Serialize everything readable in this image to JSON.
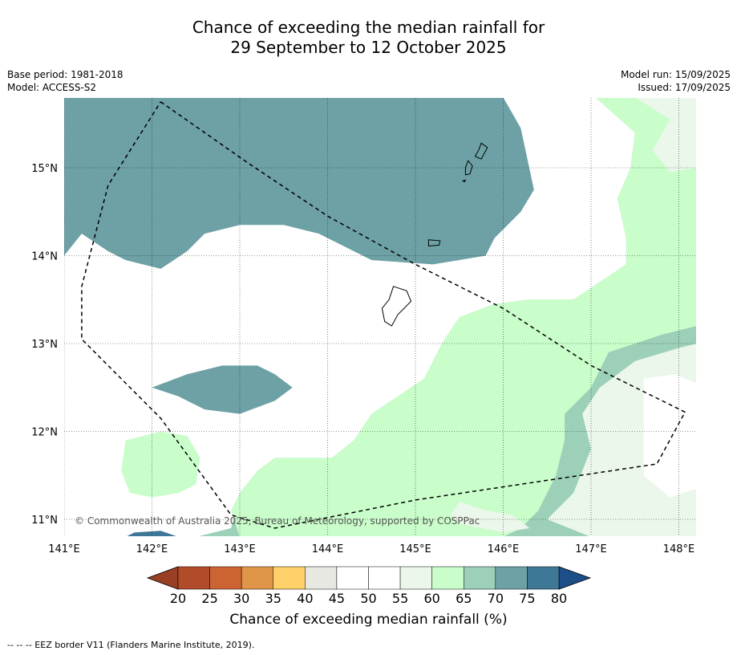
{
  "header": {
    "title_line1": "Chance of exceeding the median rainfall for",
    "title_line2": "29 September to 12 October 2025",
    "base_period": "Base period: 1981-2018",
    "model": "Model: ACCESS-S2",
    "model_run": "Model run: 15/09/2025",
    "issued": "Issued: 17/09/2025"
  },
  "map": {
    "lon_range": [
      141.0,
      148.2
    ],
    "lat_range": [
      10.8,
      15.8
    ],
    "lon_ticks": [
      {
        "value": 141,
        "label": "141°E"
      },
      {
        "value": 142,
        "label": "142°E"
      },
      {
        "value": 143,
        "label": "143°E"
      },
      {
        "value": 144,
        "label": "144°E"
      },
      {
        "value": 145,
        "label": "145°E"
      },
      {
        "value": 146,
        "label": "146°E"
      },
      {
        "value": 147,
        "label": "147°E"
      },
      {
        "value": 148,
        "label": "148°E"
      }
    ],
    "lat_ticks": [
      {
        "value": 15,
        "label": "15°N"
      },
      {
        "value": 14,
        "label": "14°N"
      },
      {
        "value": 13,
        "label": "13°N"
      },
      {
        "value": 12,
        "label": "12°N"
      },
      {
        "value": 11,
        "label": "11°N"
      }
    ],
    "gridlines": true,
    "copyright": "© Commonwealth of Australia 2025, Bureau of Meteorology, supported by COSPPac",
    "eez_border": [
      [
        142.1,
        15.75
      ],
      [
        143.1,
        15.05
      ],
      [
        144.0,
        14.45
      ],
      [
        145.0,
        13.9
      ],
      [
        146.0,
        13.4
      ],
      [
        147.0,
        12.75
      ],
      [
        148.07,
        12.22
      ],
      [
        147.75,
        11.63
      ],
      [
        145.0,
        11.22
      ],
      [
        143.4,
        10.9
      ],
      [
        142.9,
        11.05
      ],
      [
        142.1,
        12.15
      ],
      [
        141.2,
        13.05
      ],
      [
        141.2,
        13.65
      ],
      [
        141.5,
        14.8
      ],
      [
        142.1,
        15.75
      ]
    ],
    "contour_fields": [
      {
        "level": "75-80",
        "color": "#3f7797",
        "polygons": [
          [
            [
              141.0,
              15.8
            ],
            [
              142.0,
              15.8
            ],
            [
              141.7,
              15.2
            ],
            [
              141.0,
              15.0
            ]
          ],
          [
            [
              144.5,
              15.6
            ],
            [
              144.8,
              15.65
            ],
            [
              145.2,
              15.6
            ],
            [
              145.55,
              15.4
            ],
            [
              145.4,
              15.2
            ],
            [
              145.0,
              15.05
            ],
            [
              144.7,
              14.85
            ],
            [
              144.55,
              14.7
            ],
            [
              144.4,
              14.75
            ],
            [
              144.45,
              15.3
            ]
          ],
          [
            [
              141.7,
              10.8
            ],
            [
              142.3,
              10.8
            ],
            [
              142.1,
              10.87
            ],
            [
              141.8,
              10.85
            ]
          ]
        ]
      },
      {
        "level": "70-75",
        "color": "#6da1a5",
        "polygons": [
          [
            [
              141.0,
              15.8
            ],
            [
              146.0,
              15.8
            ],
            [
              146.2,
              15.45
            ],
            [
              146.35,
              14.75
            ],
            [
              146.2,
              14.5
            ],
            [
              145.9,
              14.2
            ],
            [
              145.8,
              14.0
            ],
            [
              145.2,
              13.9
            ],
            [
              144.5,
              13.95
            ],
            [
              143.9,
              14.25
            ],
            [
              143.5,
              14.35
            ],
            [
              143.0,
              14.35
            ],
            [
              142.6,
              14.25
            ],
            [
              142.4,
              14.05
            ],
            [
              142.1,
              13.85
            ],
            [
              141.7,
              13.95
            ],
            [
              141.5,
              14.05
            ],
            [
              141.2,
              14.25
            ],
            [
              141.0,
              14.0
            ]
          ],
          [
            [
              142.0,
              12.5
            ],
            [
              142.4,
              12.65
            ],
            [
              142.8,
              12.75
            ],
            [
              143.2,
              12.75
            ],
            [
              143.4,
              12.65
            ],
            [
              143.6,
              12.5
            ],
            [
              143.4,
              12.35
            ],
            [
              143.0,
              12.2
            ],
            [
              142.6,
              12.25
            ],
            [
              142.3,
              12.4
            ]
          ]
        ]
      },
      {
        "level": "65-70",
        "color": "#9dd0b8",
        "polygons": [
          [
            [
              141.0,
              10.8
            ],
            [
              148.2,
              10.8
            ],
            [
              148.2,
              15.8
            ],
            [
              147.05,
              15.8
            ],
            [
              147.5,
              15.4
            ],
            [
              147.45,
              15.0
            ],
            [
              147.3,
              14.65
            ],
            [
              147.4,
              14.2
            ],
            [
              147.4,
              13.9
            ],
            [
              147.1,
              13.7
            ],
            [
              146.8,
              13.5
            ],
            [
              146.3,
              13.5
            ],
            [
              145.9,
              13.45
            ],
            [
              145.5,
              13.3
            ],
            [
              145.3,
              13.0
            ],
            [
              145.1,
              12.6
            ],
            [
              144.8,
              12.4
            ],
            [
              144.5,
              12.2
            ],
            [
              144.3,
              11.9
            ],
            [
              144.05,
              11.7
            ],
            [
              143.4,
              11.7
            ],
            [
              143.2,
              11.55
            ],
            [
              143.0,
              11.3
            ],
            [
              142.9,
              10.9
            ],
            [
              142.5,
              10.8
            ]
          ]
        ]
      },
      {
        "level": "60-65",
        "color": "#c9fdca",
        "polygons": [
          [
            [
              142.0,
              15.8
            ],
            [
              148.2,
              15.8
            ],
            [
              148.2,
              13.2
            ],
            [
              147.8,
              13.1
            ],
            [
              147.2,
              12.9
            ],
            [
              147.0,
              12.5
            ],
            [
              146.7,
              12.2
            ],
            [
              146.7,
              11.9
            ],
            [
              146.6,
              11.5
            ],
            [
              146.4,
              11.1
            ],
            [
              146.2,
              10.9
            ],
            [
              146.0,
              10.8
            ],
            [
              143.0,
              10.8
            ],
            [
              142.9,
              11.1
            ],
            [
              143.0,
              11.3
            ],
            [
              143.2,
              11.55
            ],
            [
              143.4,
              11.7
            ],
            [
              144.05,
              11.7
            ],
            [
              144.3,
              11.9
            ],
            [
              144.5,
              12.2
            ],
            [
              144.8,
              12.4
            ],
            [
              145.1,
              12.6
            ],
            [
              145.3,
              13.0
            ],
            [
              145.5,
              13.3
            ],
            [
              145.9,
              13.45
            ],
            [
              146.3,
              13.5
            ],
            [
              146.8,
              13.5
            ],
            [
              147.1,
              13.7
            ],
            [
              147.4,
              13.9
            ],
            [
              147.4,
              14.2
            ],
            [
              147.3,
              14.65
            ],
            [
              147.45,
              15.0
            ],
            [
              147.5,
              15.4
            ],
            [
              147.05,
              15.8
            ]
          ],
          [
            [
              141.7,
              11.9
            ],
            [
              142.1,
              12.0
            ],
            [
              142.4,
              11.95
            ],
            [
              142.55,
              11.7
            ],
            [
              142.5,
              11.4
            ],
            [
              142.3,
              11.3
            ],
            [
              142.0,
              11.25
            ],
            [
              141.75,
              11.3
            ],
            [
              141.65,
              11.55
            ]
          ]
        ]
      },
      {
        "level": "55-60",
        "color": "#ebf7eb",
        "polygons": [
          [
            [
              147.5,
              15.8
            ],
            [
              148.2,
              15.8
            ],
            [
              148.2,
              15.0
            ],
            [
              147.9,
              14.95
            ],
            [
              147.7,
              15.2
            ],
            [
              147.9,
              15.55
            ]
          ],
          [
            [
              147.1,
              12.5
            ],
            [
              147.5,
              12.8
            ],
            [
              148.0,
              12.95
            ],
            [
              148.2,
              13.0
            ],
            [
              148.2,
              10.8
            ],
            [
              147.0,
              10.8
            ],
            [
              146.5,
              11.0
            ],
            [
              146.8,
              11.3
            ],
            [
              147.0,
              11.8
            ],
            [
              146.9,
              12.2
            ]
          ],
          [
            [
              145.5,
              11.2
            ],
            [
              145.4,
              11.05
            ],
            [
              145.5,
              10.95
            ],
            [
              146.0,
              10.85
            ],
            [
              146.3,
              10.9
            ],
            [
              146.1,
              11.05
            ],
            [
              145.8,
              11.1
            ]
          ]
        ]
      },
      {
        "level": "50-55",
        "color": "#ffffff",
        "polygons": [
          [
            [
              147.6,
              12.6
            ],
            [
              147.95,
              12.65
            ],
            [
              148.2,
              12.55
            ],
            [
              148.2,
              11.35
            ],
            [
              147.9,
              11.25
            ],
            [
              147.6,
              11.5
            ],
            [
              147.6,
              12.0
            ]
          ]
        ]
      }
    ],
    "land": [
      {
        "name": "Guam",
        "outline": [
          [
            144.75,
            13.65
          ],
          [
            144.9,
            13.6
          ],
          [
            144.95,
            13.48
          ],
          [
            144.8,
            13.33
          ],
          [
            144.73,
            13.2
          ],
          [
            144.65,
            13.25
          ],
          [
            144.62,
            13.4
          ],
          [
            144.7,
            13.5
          ]
        ]
      },
      {
        "name": "Rota",
        "outline": [
          [
            145.15,
            14.18
          ],
          [
            145.28,
            14.17
          ],
          [
            145.27,
            14.12
          ],
          [
            145.15,
            14.11
          ]
        ]
      },
      {
        "name": "Tinian",
        "outline": [
          [
            145.6,
            15.08
          ],
          [
            145.65,
            15.02
          ],
          [
            145.62,
            14.93
          ],
          [
            145.57,
            14.92
          ],
          [
            145.57,
            15.0
          ]
        ]
      },
      {
        "name": "Saipan",
        "outline": [
          [
            145.75,
            15.28
          ],
          [
            145.82,
            15.23
          ],
          [
            145.75,
            15.1
          ],
          [
            145.68,
            15.13
          ],
          [
            145.72,
            15.2
          ]
        ]
      },
      {
        "name": "Aguijan",
        "outline": [
          [
            145.54,
            14.85
          ],
          [
            145.57,
            14.86
          ],
          [
            145.56,
            14.84
          ]
        ]
      }
    ]
  },
  "colorbar": {
    "title": "Chance of exceeding median rainfall (%)",
    "tick_labels": [
      "20",
      "25",
      "30",
      "35",
      "40",
      "45",
      "50",
      "55",
      "60",
      "65",
      "70",
      "75",
      "80"
    ],
    "bins": [
      "#b14b2a",
      "#cc6333",
      "#e09648",
      "#fdd06a",
      "#e8e8e2",
      "#ffffff",
      "#ffffff",
      "#ebf7eb",
      "#c9fdca",
      "#9dd0b8",
      "#6da1a5",
      "#3f7797"
    ],
    "under_color": "#993f23",
    "over_color": "#1c4f87"
  },
  "footnote": "--  --  -- EEZ border V11 (Flanders Marine Institute, 2019)."
}
